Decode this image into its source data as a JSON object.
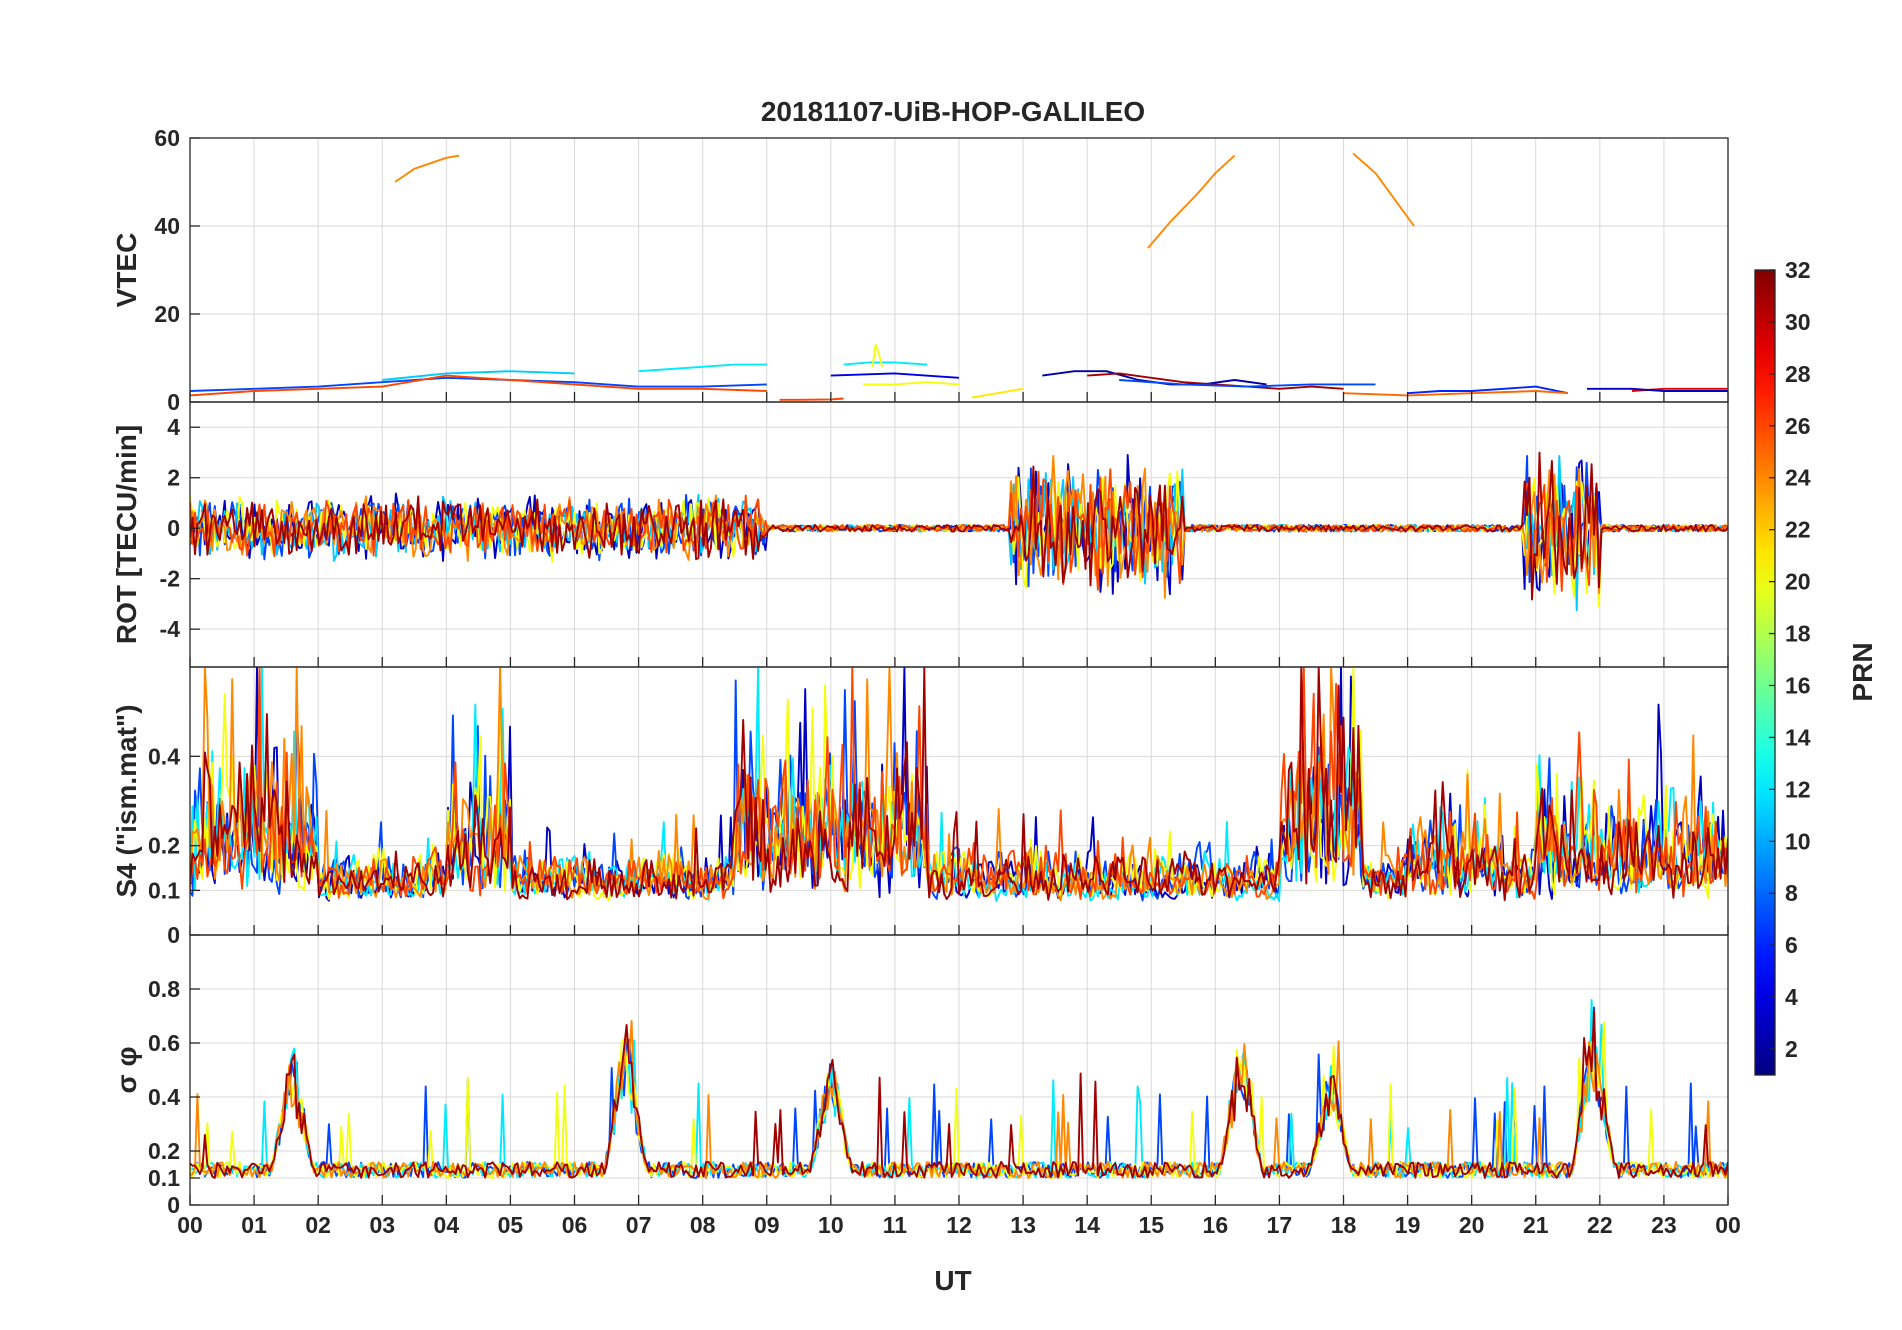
{
  "chart_data": {
    "type": "line",
    "title": "20181107-UiB-HOP-GALILEO",
    "x_axis": {
      "label": "UT",
      "ticks": [
        "00",
        "01",
        "02",
        "03",
        "04",
        "05",
        "06",
        "07",
        "08",
        "09",
        "10",
        "11",
        "12",
        "13",
        "14",
        "15",
        "16",
        "17",
        "18",
        "19",
        "20",
        "21",
        "22",
        "23",
        "00"
      ],
      "range_hours": [
        0,
        24
      ]
    },
    "colorbar": {
      "label": "PRN",
      "colormap": "jet",
      "range": [
        1,
        32
      ],
      "ticks": [
        "2",
        "4",
        "6",
        "8",
        "10",
        "12",
        "14",
        "16",
        "18",
        "20",
        "22",
        "24",
        "26",
        "28",
        "30",
        "32"
      ]
    },
    "grid": true,
    "panels": [
      {
        "ylabel": "VTEC",
        "ylim": [
          0,
          60
        ],
        "yticks": [
          "0",
          "20",
          "40",
          "60"
        ],
        "series": [
          {
            "prn": 24,
            "x": [
              3.2,
              3.5,
              3.8,
              4.0,
              4.2
            ],
            "y": [
              50,
              53,
              54.5,
              55.5,
              56
            ]
          },
          {
            "prn": 24,
            "x": [
              14.95,
              15.3,
              15.7,
              16.0,
              16.3
            ],
            "y": [
              35,
              41,
              47,
              52,
              56
            ]
          },
          {
            "prn": 24,
            "x": [
              18.15,
              18.5,
              18.8,
              19.1
            ],
            "y": [
              56.5,
              52,
              46,
              40
            ]
          },
          {
            "prn": 7,
            "x": [
              0,
              1,
              2,
              3,
              4,
              5,
              6,
              7,
              8,
              9
            ],
            "y": [
              2.5,
              3,
              3.5,
              4.5,
              5.5,
              5,
              4.5,
              3.5,
              3.5,
              4
            ]
          },
          {
            "prn": 11,
            "x": [
              3,
              4,
              5,
              6
            ],
            "y": [
              5,
              6.5,
              7,
              6.5
            ]
          },
          {
            "prn": 12,
            "x": [
              7,
              7.5,
              8,
              8.5,
              9
            ],
            "y": [
              7,
              7.5,
              8,
              8.5,
              8.5
            ]
          },
          {
            "prn": 12,
            "x": [
              10.2,
              10.6,
              11,
              11.5
            ],
            "y": [
              8.5,
              9,
              9,
              8.5
            ]
          },
          {
            "prn": 20,
            "x": [
              10.65,
              10.7,
              10.75,
              10.8
            ],
            "y": [
              8,
              13,
              11,
              8
            ]
          },
          {
            "prn": 26,
            "x": [
              0,
              1,
              2,
              3,
              4,
              5,
              6,
              7,
              8,
              9
            ],
            "y": [
              1.5,
              2.5,
              3,
              3.5,
              6,
              5,
              4,
              3,
              3,
              2.5
            ]
          },
          {
            "prn": 26,
            "x": [
              9.2,
              9.5,
              10,
              10.2
            ],
            "y": [
              0.5,
              0.5,
              0.6,
              0.8
            ]
          },
          {
            "prn": 20,
            "x": [
              10.5,
              11,
              11.5,
              12
            ],
            "y": [
              4,
              4,
              4.5,
              4
            ]
          },
          {
            "prn": 4,
            "x": [
              10,
              11,
              12
            ],
            "y": [
              6,
              6.5,
              5.5
            ]
          },
          {
            "prn": 21,
            "x": [
              12.2,
              12.6,
              13
            ],
            "y": [
              1,
              2,
              3
            ]
          },
          {
            "prn": 2,
            "x": [
              13.3,
              13.8,
              14.3,
              14.8,
              15.3,
              15.8,
              16.3,
              16.8
            ],
            "y": [
              6,
              7,
              7,
              5,
              4,
              4,
              5,
              4
            ]
          },
          {
            "prn": 31,
            "x": [
              14,
              14.5,
              15,
              15.5,
              16,
              16.5,
              17,
              17.5,
              18
            ],
            "y": [
              6,
              6.5,
              5.5,
              4.5,
              4,
              3.5,
              3,
              3.5,
              3
            ]
          },
          {
            "prn": 7,
            "x": [
              14.5,
              15.5,
              16.5,
              17.5,
              18.5
            ],
            "y": [
              5,
              4,
              3.5,
              4,
              4
            ]
          },
          {
            "prn": 6,
            "x": [
              19,
              19.5,
              20,
              20.5,
              21,
              21.5
            ],
            "y": [
              2,
              2.5,
              2.5,
              3,
              3.5,
              2
            ]
          },
          {
            "prn": 25,
            "x": [
              18,
              19,
              20,
              21,
              21.5
            ],
            "y": [
              2,
              1.5,
              2,
              2.5,
              2
            ]
          },
          {
            "prn": 29,
            "x": [
              22.5,
              23,
              23.5,
              24
            ],
            "y": [
              2.5,
              3,
              3,
              3
            ]
          },
          {
            "prn": 3,
            "x": [
              21.8,
              22.5,
              23,
              23.5,
              24
            ],
            "y": [
              3,
              3,
              2.5,
              2.5,
              2.5
            ]
          }
        ]
      },
      {
        "ylabel": "ROT [TECU/min]",
        "ylim": [
          -5.5,
          5
        ],
        "yticks": [
          "-4",
          "-2",
          "0",
          "2",
          "4"
        ],
        "series_note": "noisy rate-of-TEC traces per PRN, amplitudes estimated from figure",
        "activity_windows_hours": [
          [
            0,
            9,
            1.2
          ],
          [
            12.8,
            15.5,
            2.6
          ],
          [
            20.8,
            22,
            2.9
          ]
        ],
        "series_prn": [
          3,
          7,
          11,
          20,
          24,
          26,
          31
        ]
      },
      {
        "ylabel": "S4 (\"ism.mat\")",
        "ylim": [
          0,
          0.6
        ],
        "yticks": [
          "0",
          "0.1",
          "0.2",
          "0.4"
        ],
        "series_prn": [
          3,
          7,
          12,
          20,
          24,
          26,
          31
        ],
        "activity_windows_hours": [
          [
            0,
            2,
            0.45
          ],
          [
            4,
            5,
            0.4
          ],
          [
            8.5,
            11.5,
            0.4
          ],
          [
            17,
            18.3,
            0.5
          ],
          [
            19,
            20.5,
            0.25
          ],
          [
            21,
            24,
            0.3
          ]
        ]
      },
      {
        "ylabel": "σ φ",
        "ylim": [
          0,
          1
        ],
        "yticks": [
          "0",
          "0.1",
          "0.2",
          "0.4",
          "0.6",
          "0.8"
        ],
        "series_prn": [
          7,
          12,
          20,
          24,
          31
        ],
        "peaks": [
          {
            "x": 1.6,
            "y": 0.63
          },
          {
            "x": 6.8,
            "y": 0.72
          },
          {
            "x": 10.0,
            "y": 0.6
          },
          {
            "x": 16.4,
            "y": 0.7
          },
          {
            "x": 17.8,
            "y": 0.55
          },
          {
            "x": 21.9,
            "y": 0.76
          }
        ]
      }
    ]
  }
}
